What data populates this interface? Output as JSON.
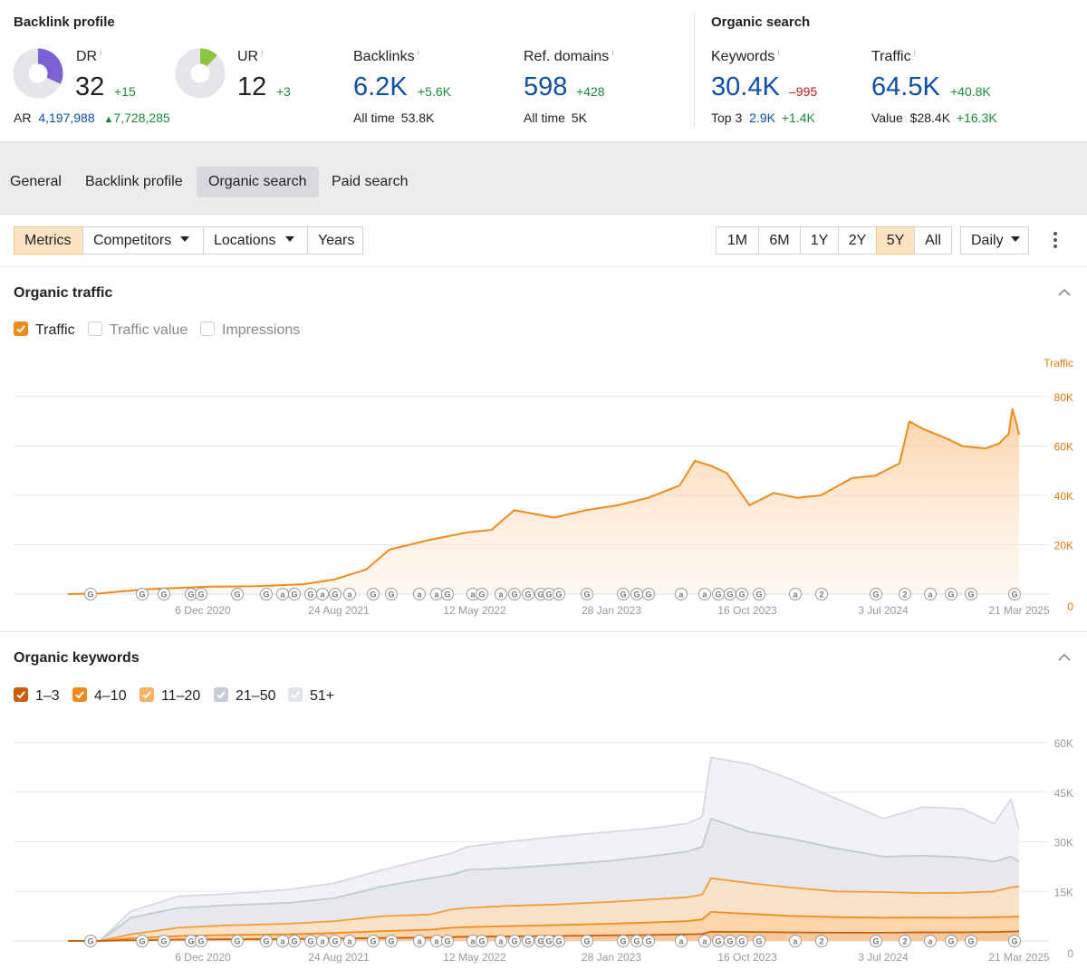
{
  "backlink_profile": {
    "title": "Backlink profile",
    "dr": {
      "label": "DR",
      "value": "32",
      "delta": "+15",
      "fill": 0.32,
      "color": "#7b61d4"
    },
    "ur": {
      "label": "UR",
      "value": "12",
      "delta": "+3",
      "fill": 0.12,
      "color": "#8cc63f"
    },
    "ar": {
      "label": "AR",
      "value": "4,197,988",
      "delta": "7,728,285"
    },
    "backlinks": {
      "label": "Backlinks",
      "value": "6.2K",
      "delta": "+5.6K",
      "sub_label": "All time",
      "sub_value": "53.8K"
    },
    "ref_domains": {
      "label": "Ref. domains",
      "value": "598",
      "delta": "+428",
      "sub_label": "All time",
      "sub_value": "5K"
    }
  },
  "organic_search": {
    "title": "Organic search",
    "keywords": {
      "label": "Keywords",
      "value": "30.4K",
      "delta": "–995",
      "sub_label": "Top 3",
      "sub_value": "2.9K",
      "sub_delta": "+1.4K"
    },
    "traffic": {
      "label": "Traffic",
      "value": "64.5K",
      "delta": "+40.8K",
      "sub_label": "Value",
      "sub_value": "$28.4K",
      "sub_delta": "+16.3K"
    }
  },
  "info_mark": "i",
  "tabs": [
    "General",
    "Backlink profile",
    "Organic search",
    "Paid search"
  ],
  "active_tab": "Organic search",
  "toolbar": {
    "metrics": "Metrics",
    "competitors": "Competitors",
    "locations": "Locations",
    "years": "Years",
    "ranges": [
      "1M",
      "6M",
      "1Y",
      "2Y",
      "5Y",
      "All"
    ],
    "active_range": "5Y",
    "granularity": "Daily"
  },
  "organic_traffic": {
    "title": "Organic traffic",
    "legend": [
      {
        "label": "Traffic",
        "checked": true,
        "color": "#f08a1c"
      },
      {
        "label": "Traffic value",
        "checked": false
      },
      {
        "label": "Impressions",
        "checked": false
      }
    ]
  },
  "organic_keywords": {
    "title": "Organic keywords",
    "legend": [
      {
        "label": "1–3",
        "checked": true,
        "color": "#c95f0a"
      },
      {
        "label": "4–10",
        "checked": true,
        "color": "#f08a1c"
      },
      {
        "label": "11–20",
        "checked": true,
        "color": "#f7b263"
      },
      {
        "label": "21–50",
        "checked": true,
        "color": "#c8ccd6"
      },
      {
        "label": "51+",
        "checked": true,
        "color": "#e1e4ea"
      }
    ]
  },
  "chart_data": [
    {
      "type": "area",
      "title": "Organic traffic",
      "ylabel": "Traffic",
      "ylim": [
        0,
        80000
      ],
      "yticks": [
        "0",
        "20K",
        "40K",
        "60K",
        "80K"
      ],
      "xticks": [
        "6 Dec 2020",
        "24 Aug 2021",
        "12 May 2022",
        "28 Jan 2023",
        "16 Oct 2023",
        "3 Jul 2024",
        "21 Mar 2025"
      ],
      "grid": true,
      "series": [
        {
          "name": "Traffic",
          "color": "#f08a1c",
          "x": [
            "2020-03-01",
            "2020-05-01",
            "2020-08-01",
            "2020-12-01",
            "2021-03-01",
            "2021-06-01",
            "2021-08-01",
            "2021-10-01",
            "2021-11-15",
            "2022-02-01",
            "2022-04-15",
            "2022-06-01",
            "2022-07-15",
            "2022-10-01",
            "2022-12-01",
            "2023-02-01",
            "2023-04-01",
            "2023-06-01",
            "2023-07-01",
            "2023-08-01",
            "2023-09-01",
            "2023-10-15",
            "2023-12-01",
            "2024-01-15",
            "2024-03-01",
            "2024-05-01",
            "2024-06-15",
            "2024-08-01",
            "2024-08-20",
            "2024-09-15",
            "2024-11-01",
            "2024-12-01",
            "2025-01-15",
            "2025-02-10",
            "2025-03-01",
            "2025-03-08",
            "2025-03-15",
            "2025-03-21"
          ],
          "values": [
            0,
            300,
            2000,
            3000,
            3200,
            4000,
            6000,
            10000,
            18000,
            22000,
            25000,
            26000,
            34000,
            31000,
            34000,
            36000,
            39000,
            44000,
            54000,
            52000,
            49000,
            36000,
            41000,
            39000,
            40000,
            47000,
            48000,
            53000,
            70000,
            67000,
            63000,
            60000,
            59000,
            61000,
            65000,
            75000,
            70000,
            64500
          ]
        }
      ],
      "annotations": "G, a and 2 markers along the x-axis"
    },
    {
      "type": "area",
      "title": "Organic keywords",
      "ylim": [
        0,
        60000
      ],
      "yticks": [
        "0",
        "15K",
        "30K",
        "45K",
        "60K"
      ],
      "xticks": [
        "6 Dec 2020",
        "24 Aug 2021",
        "12 May 2022",
        "28 Jan 2023",
        "16 Oct 2023",
        "3 Jul 2024",
        "21 Mar 2025"
      ],
      "grid": true,
      "stacked": true,
      "x": [
        "2020-03-01",
        "2020-05-01",
        "2020-07-01",
        "2020-10-01",
        "2021-01-01",
        "2021-05-01",
        "2021-08-01",
        "2021-11-01",
        "2022-02-01",
        "2022-03-15",
        "2022-04-15",
        "2022-07-01",
        "2022-10-01",
        "2023-01-15",
        "2023-04-01",
        "2023-06-15",
        "2023-07-15",
        "2023-08-01",
        "2023-10-15",
        "2024-01-01",
        "2024-04-01",
        "2024-07-01",
        "2024-09-15",
        "2024-12-01",
        "2025-02-01",
        "2025-03-05",
        "2025-03-21"
      ],
      "series": [
        {
          "name": "1–3",
          "color": "#c95f0a",
          "values": [
            0,
            0,
            200,
            400,
            500,
            600,
            700,
            900,
            1000,
            1200,
            1300,
            1400,
            1500,
            1700,
            1800,
            2000,
            2100,
            2800,
            2700,
            2600,
            2500,
            2500,
            2600,
            2600,
            2700,
            2850,
            2900
          ]
        },
        {
          "name": "4–10",
          "color": "#f08a1c",
          "values": [
            0,
            0,
            800,
            1500,
            1800,
            2000,
            2400,
            3000,
            3400,
            4000,
            4200,
            4500,
            4800,
            5200,
            5600,
            6000,
            6500,
            8800,
            8200,
            7600,
            7200,
            7000,
            7100,
            7000,
            7200,
            7300,
            7400
          ]
        },
        {
          "name": "11–20",
          "color": "#f7b263",
          "values": [
            0,
            0,
            2000,
            4000,
            4700,
            5200,
            6000,
            7500,
            8000,
            9500,
            10000,
            10600,
            11000,
            11800,
            12500,
            13200,
            14000,
            19000,
            17500,
            16200,
            15000,
            14800,
            14500,
            14600,
            15000,
            16200,
            16500
          ]
        },
        {
          "name": "21–50",
          "color": "#c8ccd6",
          "values": [
            0,
            0,
            7000,
            10000,
            10800,
            11500,
            13000,
            16500,
            19000,
            20000,
            21500,
            22000,
            23000,
            24200,
            25500,
            27000,
            28500,
            37000,
            33000,
            31000,
            28000,
            25500,
            25800,
            25300,
            24000,
            25500,
            24000
          ]
        },
        {
          "name": "51+",
          "color": "#e1e4ea",
          "values": [
            0,
            0,
            9000,
            13500,
            14200,
            15500,
            17500,
            21500,
            25000,
            26500,
            28500,
            30000,
            31500,
            33000,
            34000,
            35500,
            37500,
            55500,
            53500,
            49000,
            43000,
            37000,
            40500,
            40000,
            35500,
            43000,
            33500
          ]
        }
      ]
    }
  ]
}
